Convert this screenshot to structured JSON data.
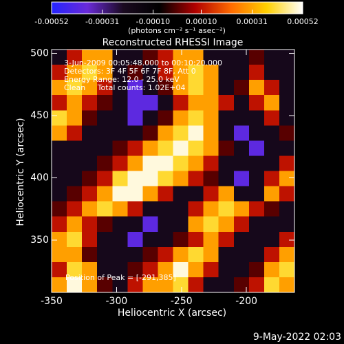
{
  "chart_data": {
    "type": "heatmap",
    "title": "Reconstructed RHESSI Image",
    "colorbar_label": "(photons cm⁻² s⁻¹ asec⁻²)",
    "colorscale": [
      "#2424ff",
      "#6a2ad8",
      "#1a0a20",
      "#000000",
      "#b00000",
      "#ff6a00",
      "#ffd000",
      "#ffffff"
    ],
    "zlim": [
      -0.00052,
      0.00052
    ],
    "cticks": [
      -0.00052,
      -0.00031,
      {
        "value": -0.0001,
        "label": "-0.00010"
      },
      {
        "value": 0.0001,
        "label": "0.00010"
      },
      0.00031,
      0.00052
    ],
    "xlabel": "Heliocentric X (arcsec)",
    "ylabel": "Heliocentric Y (arcsec)",
    "xlim": [
      -350,
      -163
    ],
    "ylim": [
      308,
      503
    ],
    "xticks": [
      -350,
      -300,
      -250,
      -200
    ],
    "yticks": [
      350,
      400,
      450,
      500
    ],
    "annotations": [
      "3-Jun-2009 00:05:48.000 to 00:10:20.000",
      "Detectors: 3F 4F 5F 6F 7F 8F, Att 0",
      "Energy Range: 12.0 - 25.0 keV",
      "Clean     Total counts: 1.02E+04"
    ],
    "peak_label": "Position of Peak = [-291,385]",
    "footer": "9-May-2022 02:03",
    "z": [
      [
        -0.0002,
        0.0001,
        0.0003,
        0.0003,
        -0.0002,
        -0.0002,
        0,
        0.0001,
        0.0003,
        0.0003,
        -0.0002,
        -0.0002,
        -0.0002,
        0,
        -0.0002,
        -0.0002
      ],
      [
        0.0001,
        0.0003,
        0.0004,
        0.0003,
        -0.0002,
        0,
        -0.0002,
        0.0001,
        0.0003,
        0.0004,
        0.0003,
        -0.0002,
        -0.0002,
        0.0001,
        -0.0002,
        -0.0002
      ],
      [
        0.0003,
        0.0004,
        0.0003,
        0.0001,
        -0.0002,
        -0.0004,
        -0.0002,
        0,
        0.0003,
        0.0004,
        0.0003,
        -0.0002,
        0,
        0.0003,
        0.0001,
        -0.0002
      ],
      [
        0.0001,
        0.0003,
        0.0001,
        0,
        -0.0002,
        -0.0004,
        -0.0004,
        -0.0002,
        0.0001,
        0.0003,
        0.0003,
        0.0001,
        -0.0002,
        0.0001,
        0.0003,
        -0.0002
      ],
      [
        0.0004,
        0.0003,
        0,
        -0.0002,
        -0.0002,
        -0.0004,
        -0.0002,
        0,
        0.0003,
        0.0004,
        0.0003,
        -0.0002,
        -0.0002,
        -0.0002,
        0.0001,
        -0.0002
      ],
      [
        0.0003,
        0.0001,
        -0.0002,
        -0.0002,
        -0.0002,
        -0.0002,
        0,
        0.0003,
        0.0004,
        0.0005,
        0.0003,
        -0.0002,
        -0.0004,
        -0.0002,
        -0.0002,
        0
      ],
      [
        -0.0002,
        -0.0002,
        -0.0002,
        -0.0002,
        0,
        0.0001,
        0.0003,
        0.0004,
        0.0005,
        0.0004,
        0.0003,
        0,
        -0.0002,
        -0.0004,
        -0.0002,
        -0.0002
      ],
      [
        -0.0002,
        -0.0002,
        -0.0002,
        0,
        0.0001,
        0.0003,
        0.0005,
        0.0005,
        0.0004,
        0.0003,
        0.0001,
        -0.0002,
        -0.0002,
        -0.0002,
        -0.0002,
        0.0001
      ],
      [
        -0.0002,
        -0.0002,
        0,
        0.0001,
        0.0004,
        0.0005,
        0.0005,
        0.0004,
        0.0003,
        0.0001,
        0,
        -0.0002,
        -0.0004,
        -0.0002,
        0.0001,
        0.0003
      ],
      [
        -0.0002,
        0,
        0.0001,
        0.0003,
        0.0005,
        0.0005,
        0.0003,
        0.0001,
        -0.0002,
        -0.0002,
        0.0001,
        0.0003,
        -0.0002,
        -0.0002,
        0.0003,
        0.0001
      ],
      [
        0,
        0.0001,
        0.0003,
        0.0004,
        0.0003,
        0.0001,
        -0.0002,
        -0.0002,
        -0.0002,
        0.0001,
        0.0003,
        0.0004,
        0.0003,
        0.0001,
        0,
        -0.0002
      ],
      [
        0.0001,
        0.0003,
        0.0001,
        0,
        -0.0002,
        -0.0002,
        -0.0004,
        -0.0002,
        -0.0002,
        0.0003,
        0.0004,
        0.0003,
        0.0001,
        -0.0002,
        -0.0002,
        -0.0002
      ],
      [
        0.0003,
        0.0004,
        0.0001,
        -0.0002,
        -0.0002,
        -0.0004,
        -0.0002,
        -0.0002,
        0,
        0.0001,
        0.0003,
        0.0001,
        -0.0002,
        -0.0002,
        -0.0002,
        0.0001
      ],
      [
        0.0003,
        0.0003,
        0,
        -0.0002,
        -0.0002,
        -0.0002,
        0,
        0.0001,
        0.0003,
        0.0004,
        0.0003,
        -0.0002,
        -0.0002,
        -0.0002,
        0.0001,
        0.0003
      ],
      [
        0.0001,
        0.0004,
        0.0003,
        -0.0002,
        -0.0002,
        0,
        0.0001,
        0.0003,
        0.0005,
        0.0003,
        0.0001,
        -0.0002,
        -0.0002,
        0,
        0.0003,
        0.0004
      ],
      [
        0.0003,
        0.0005,
        0.0003,
        0,
        -0.0002,
        0.0001,
        0.0003,
        0.0003,
        0.0004,
        0.0001,
        -0.0002,
        -0.0002,
        0,
        0.0001,
        0.0004,
        0.0003
      ]
    ]
  }
}
